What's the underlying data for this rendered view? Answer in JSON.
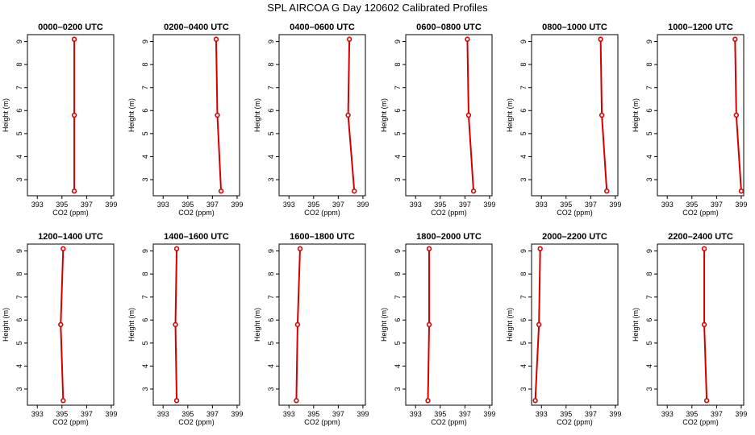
{
  "title": "SPL AIRCOA G  Day 120602  Calibrated Profiles",
  "chart_data": [
    {
      "type": "line",
      "title": "0000–0200 UTC",
      "xlabel": "CO2 (ppm)",
      "ylabel": "Height (m)",
      "xlim": [
        392.2,
        399.2
      ],
      "ylim": [
        2.3,
        9.3
      ],
      "x_ticks": [
        393,
        395,
        397,
        399
      ],
      "y_ticks": [
        3,
        4,
        5,
        6,
        7,
        8,
        9
      ],
      "series": [
        {
          "x": [
            396.0,
            396.0,
            396.0
          ],
          "y": [
            9.1,
            5.8,
            2.5
          ]
        }
      ]
    },
    {
      "type": "line",
      "title": "0200–0400 UTC",
      "xlabel": "CO2 (ppm)",
      "ylabel": "Height (m)",
      "xlim": [
        392.2,
        399.2
      ],
      "ylim": [
        2.3,
        9.3
      ],
      "x_ticks": [
        393,
        395,
        397,
        399
      ],
      "y_ticks": [
        3,
        4,
        5,
        6,
        7,
        8,
        9
      ],
      "series": [
        {
          "x": [
            397.3,
            397.4,
            397.7
          ],
          "y": [
            9.1,
            5.8,
            2.5
          ]
        }
      ]
    },
    {
      "type": "line",
      "title": "0400–0600 UTC",
      "xlabel": "CO2 (ppm)",
      "ylabel": "Height (m)",
      "xlim": [
        392.2,
        399.2
      ],
      "ylim": [
        2.3,
        9.3
      ],
      "x_ticks": [
        393,
        395,
        397,
        399
      ],
      "y_ticks": [
        3,
        4,
        5,
        6,
        7,
        8,
        9
      ],
      "series": [
        {
          "x": [
            397.9,
            397.8,
            398.3
          ],
          "y": [
            9.1,
            5.8,
            2.5
          ]
        }
      ]
    },
    {
      "type": "line",
      "title": "0600–0800 UTC",
      "xlabel": "CO2 (ppm)",
      "ylabel": "Height (m)",
      "xlim": [
        392.2,
        399.2
      ],
      "ylim": [
        2.3,
        9.3
      ],
      "x_ticks": [
        393,
        395,
        397,
        399
      ],
      "y_ticks": [
        3,
        4,
        5,
        6,
        7,
        8,
        9
      ],
      "series": [
        {
          "x": [
            397.2,
            397.3,
            397.7
          ],
          "y": [
            9.1,
            5.8,
            2.5
          ]
        }
      ]
    },
    {
      "type": "line",
      "title": "0800–1000 UTC",
      "xlabel": "CO2 (ppm)",
      "ylabel": "Height (m)",
      "xlim": [
        392.2,
        399.2
      ],
      "ylim": [
        2.3,
        9.3
      ],
      "x_ticks": [
        393,
        395,
        397,
        399
      ],
      "y_ticks": [
        3,
        4,
        5,
        6,
        7,
        8,
        9
      ],
      "series": [
        {
          "x": [
            397.8,
            397.9,
            398.3
          ],
          "y": [
            9.1,
            5.8,
            2.5
          ]
        }
      ]
    },
    {
      "type": "line",
      "title": "1000–1200 UTC",
      "xlabel": "CO2 (ppm)",
      "ylabel": "Height (m)",
      "xlim": [
        392.2,
        399.2
      ],
      "ylim": [
        2.3,
        9.3
      ],
      "x_ticks": [
        393,
        395,
        397,
        399
      ],
      "y_ticks": [
        3,
        4,
        5,
        6,
        7,
        8,
        9
      ],
      "series": [
        {
          "x": [
            398.5,
            398.6,
            399.0
          ],
          "y": [
            9.1,
            5.8,
            2.5
          ]
        }
      ]
    },
    {
      "type": "line",
      "title": "1200–1400 UTC",
      "xlabel": "CO2 (ppm)",
      "ylabel": "Height (m)",
      "xlim": [
        392.2,
        399.2
      ],
      "ylim": [
        2.3,
        9.3
      ],
      "x_ticks": [
        393,
        395,
        397,
        399
      ],
      "y_ticks": [
        3,
        4,
        5,
        6,
        7,
        8,
        9
      ],
      "series": [
        {
          "x": [
            395.1,
            394.9,
            395.1
          ],
          "y": [
            9.1,
            5.8,
            2.5
          ]
        }
      ]
    },
    {
      "type": "line",
      "title": "1400–1600 UTC",
      "xlabel": "CO2 (ppm)",
      "ylabel": "Height (m)",
      "xlim": [
        392.2,
        399.2
      ],
      "ylim": [
        2.3,
        9.3
      ],
      "x_ticks": [
        393,
        395,
        397,
        399
      ],
      "y_ticks": [
        3,
        4,
        5,
        6,
        7,
        8,
        9
      ],
      "series": [
        {
          "x": [
            394.1,
            394.0,
            394.1
          ],
          "y": [
            9.1,
            5.8,
            2.5
          ]
        }
      ]
    },
    {
      "type": "line",
      "title": "1600–1800 UTC",
      "xlabel": "CO2 (ppm)",
      "ylabel": "Height (m)",
      "xlim": [
        392.2,
        399.2
      ],
      "ylim": [
        2.3,
        9.3
      ],
      "x_ticks": [
        393,
        395,
        397,
        399
      ],
      "y_ticks": [
        3,
        4,
        5,
        6,
        7,
        8,
        9
      ],
      "series": [
        {
          "x": [
            393.9,
            393.7,
            393.6
          ],
          "y": [
            9.1,
            5.8,
            2.5
          ]
        }
      ]
    },
    {
      "type": "line",
      "title": "1800–2000 UTC",
      "xlabel": "CO2 (ppm)",
      "ylabel": "Height (m)",
      "xlim": [
        392.2,
        399.2
      ],
      "ylim": [
        2.3,
        9.3
      ],
      "x_ticks": [
        393,
        395,
        397,
        399
      ],
      "y_ticks": [
        3,
        4,
        5,
        6,
        7,
        8,
        9
      ],
      "series": [
        {
          "x": [
            394.1,
            394.1,
            394.0
          ],
          "y": [
            9.1,
            5.8,
            2.5
          ]
        }
      ]
    },
    {
      "type": "line",
      "title": "2000–2200 UTC",
      "xlabel": "CO2 (ppm)",
      "ylabel": "Height (m)",
      "xlim": [
        392.2,
        399.2
      ],
      "ylim": [
        2.3,
        9.3
      ],
      "x_ticks": [
        393,
        395,
        397,
        399
      ],
      "y_ticks": [
        3,
        4,
        5,
        6,
        7,
        8,
        9
      ],
      "series": [
        {
          "x": [
            392.9,
            392.8,
            392.5
          ],
          "y": [
            9.1,
            5.8,
            2.5
          ]
        }
      ]
    },
    {
      "type": "line",
      "title": "2200–2400 UTC",
      "xlabel": "CO2 (ppm)",
      "ylabel": "Height (m)",
      "xlim": [
        392.2,
        399.2
      ],
      "ylim": [
        2.3,
        9.3
      ],
      "x_ticks": [
        393,
        395,
        397,
        399
      ],
      "y_ticks": [
        3,
        4,
        5,
        6,
        7,
        8,
        9
      ],
      "series": [
        {
          "x": [
            396.0,
            396.0,
            396.2
          ],
          "y": [
            9.1,
            5.8,
            2.5
          ]
        }
      ]
    }
  ],
  "colors": {
    "series": "#d40000",
    "axis": "#000000"
  }
}
